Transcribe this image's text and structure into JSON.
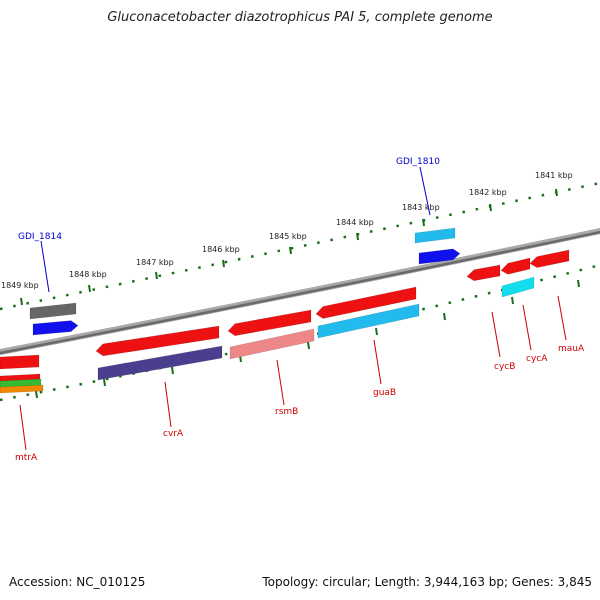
{
  "title": "Gluconacetobacter diazotrophicus PAI 5, complete genome",
  "footer": {
    "accession": "Accession: NC_010125",
    "summary": "Topology: circular; Length: 3,944,163 bp; Genes: 3,845"
  },
  "colors": {
    "backbone": "#7a7a7a",
    "tick": "#1a6e1a",
    "label_red": "#cc0000",
    "label_blue": "#0000cc",
    "red": "#ee1111",
    "blue": "#1111ee",
    "cyan": "#22bbee",
    "lightcyan": "#11ddee",
    "gray": "#666666",
    "navy": "#4a3f8f",
    "salmon": "#ee8888",
    "green": "#33bb33",
    "orange": "#ee8800"
  },
  "kbp_labels": [
    "1849 kbp",
    "1848 kbp",
    "1847 kbp",
    "1846 kbp",
    "1845 kbp",
    "1844 kbp",
    "1843 kbp",
    "1842 kbp",
    "1841 kbp"
  ],
  "gene_labels": [
    "GDI_1814",
    "GDI_1810",
    "mtrA",
    "cvrA",
    "rsmB",
    "guaB",
    "cycB",
    "cycA",
    "mauA"
  ],
  "features": [
    {
      "color": "gray",
      "dir": "none"
    },
    {
      "color": "blue",
      "dir": "right"
    },
    {
      "color": "cyan",
      "dir": "none"
    },
    {
      "color": "blue",
      "dir": "right"
    },
    {
      "color": "red",
      "dir": "left"
    },
    {
      "color": "red",
      "dir": "left"
    },
    {
      "color": "red",
      "dir": "left"
    },
    {
      "color": "red",
      "dir": "left"
    },
    {
      "color": "red",
      "dir": "left"
    },
    {
      "color": "red",
      "dir": "left"
    },
    {
      "color": "red",
      "dir": "none"
    },
    {
      "color": "navy",
      "dir": "none"
    },
    {
      "color": "salmon",
      "dir": "none"
    },
    {
      "color": "cyan",
      "dir": "none"
    },
    {
      "color": "lightcyan",
      "dir": "none"
    },
    {
      "color": "red",
      "dir": "none"
    },
    {
      "color": "green",
      "dir": "none"
    },
    {
      "color": "orange",
      "dir": "none"
    }
  ]
}
